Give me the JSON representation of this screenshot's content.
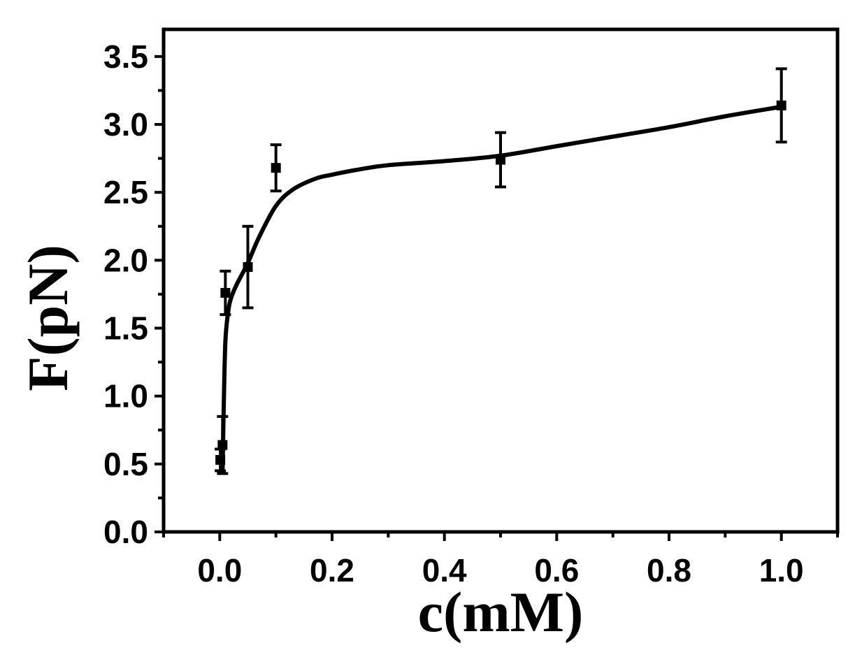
{
  "chart_data": {
    "type": "scatter",
    "title": "",
    "xlabel": "c(mM)",
    "ylabel": "F(pN)",
    "xlim": [
      -0.1,
      1.1
    ],
    "ylim": [
      0.0,
      3.7
    ],
    "xticks": [
      0.0,
      0.2,
      0.4,
      0.6,
      0.8,
      1.0
    ],
    "xtick_labels": [
      "0.0",
      "0.2",
      "0.4",
      "0.6",
      "0.8",
      "1.0"
    ],
    "yticks": [
      0.0,
      0.5,
      1.0,
      1.5,
      2.0,
      2.5,
      3.0,
      3.5
    ],
    "ytick_labels": [
      "0.0",
      "0.5",
      "1.0",
      "1.5",
      "2.0",
      "2.5",
      "3.0",
      "3.5"
    ],
    "grid": false,
    "legend": "none",
    "series": [
      {
        "kind": "points-with-error-bars",
        "x": [
          0.001,
          0.005,
          0.01,
          0.05,
          0.1,
          0.5,
          1.0
        ],
        "y": [
          0.53,
          0.64,
          1.76,
          1.95,
          2.68,
          2.74,
          3.14
        ],
        "yerr": [
          0.08,
          0.21,
          0.16,
          0.3,
          0.17,
          0.2,
          0.27
        ]
      },
      {
        "kind": "fit-curve",
        "x": [
          0.005,
          0.007,
          0.01,
          0.015,
          0.02,
          0.03,
          0.05,
          0.07,
          0.1,
          0.13,
          0.17,
          0.2,
          0.25,
          0.3,
          0.4,
          0.5,
          0.6,
          0.7,
          0.8,
          0.9,
          1.0
        ],
        "y": [
          0.45,
          0.9,
          1.4,
          1.62,
          1.72,
          1.82,
          1.98,
          2.17,
          2.4,
          2.52,
          2.6,
          2.63,
          2.67,
          2.7,
          2.73,
          2.77,
          2.84,
          2.91,
          2.98,
          3.06,
          3.13
        ]
      }
    ]
  }
}
